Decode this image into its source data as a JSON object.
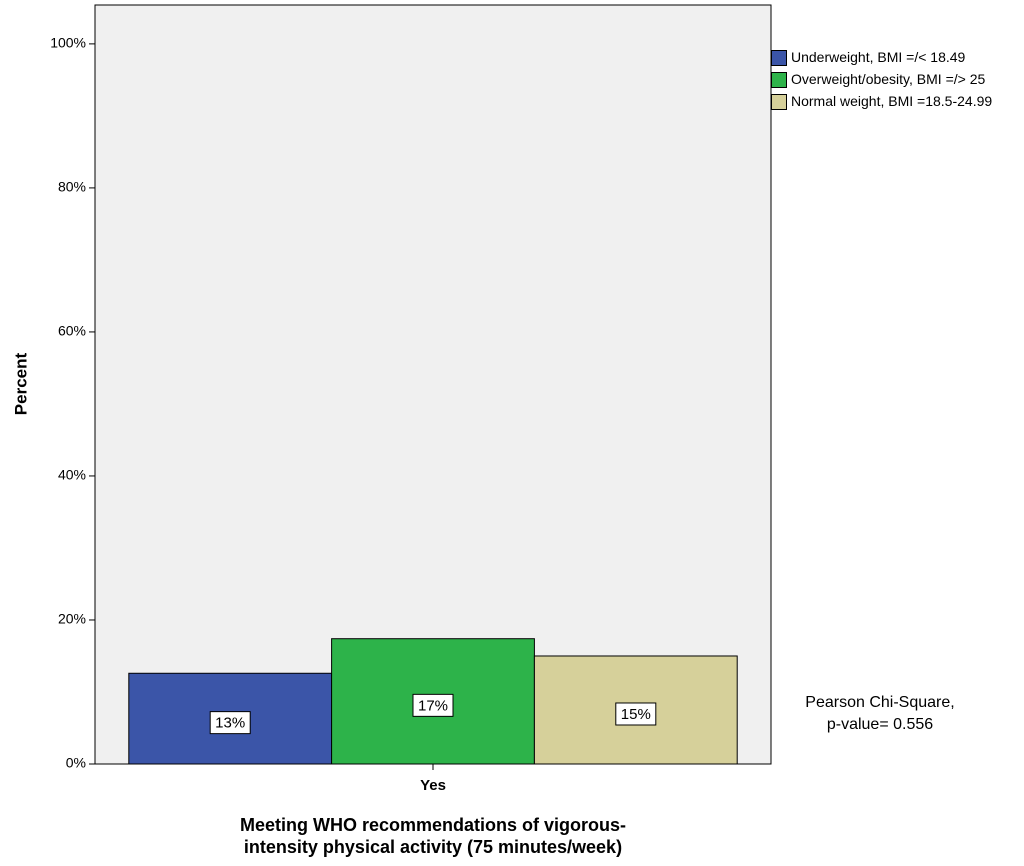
{
  "chart_data": {
    "type": "bar",
    "y_label": "Percent",
    "x_label": [
      "Meeting WHO recommendations of vigorous-",
      "intensity physical activity (75 minutes/week)"
    ],
    "annotation": [
      "Pearson Chi-Square,",
      "p-value= 0.556"
    ],
    "categories": [
      "Yes"
    ],
    "series": [
      {
        "name": "Underweight, BMI =/< 18.49",
        "color": "#3b55a8",
        "values": [
          12.6
        ],
        "value_labels": [
          "13%"
        ]
      },
      {
        "name": "Overweight/obesity, BMI =/> 25",
        "color": "#2db34a",
        "values": [
          17.4
        ],
        "value_labels": [
          "17%"
        ]
      },
      {
        "name": "Normal weight, BMI =18.5-24.99",
        "color": "#d6d09a",
        "values": [
          15.0
        ],
        "value_labels": [
          "15%"
        ]
      }
    ],
    "ylim": [
      0,
      105.4
    ],
    "yticks": [
      {
        "value": 0,
        "label": "0%"
      },
      {
        "value": 20,
        "label": "20%"
      },
      {
        "value": 40,
        "label": "40%"
      },
      {
        "value": 60,
        "label": "60%"
      },
      {
        "value": 80,
        "label": "80%"
      },
      {
        "value": 100,
        "label": "100%"
      }
    ],
    "grid": false
  }
}
